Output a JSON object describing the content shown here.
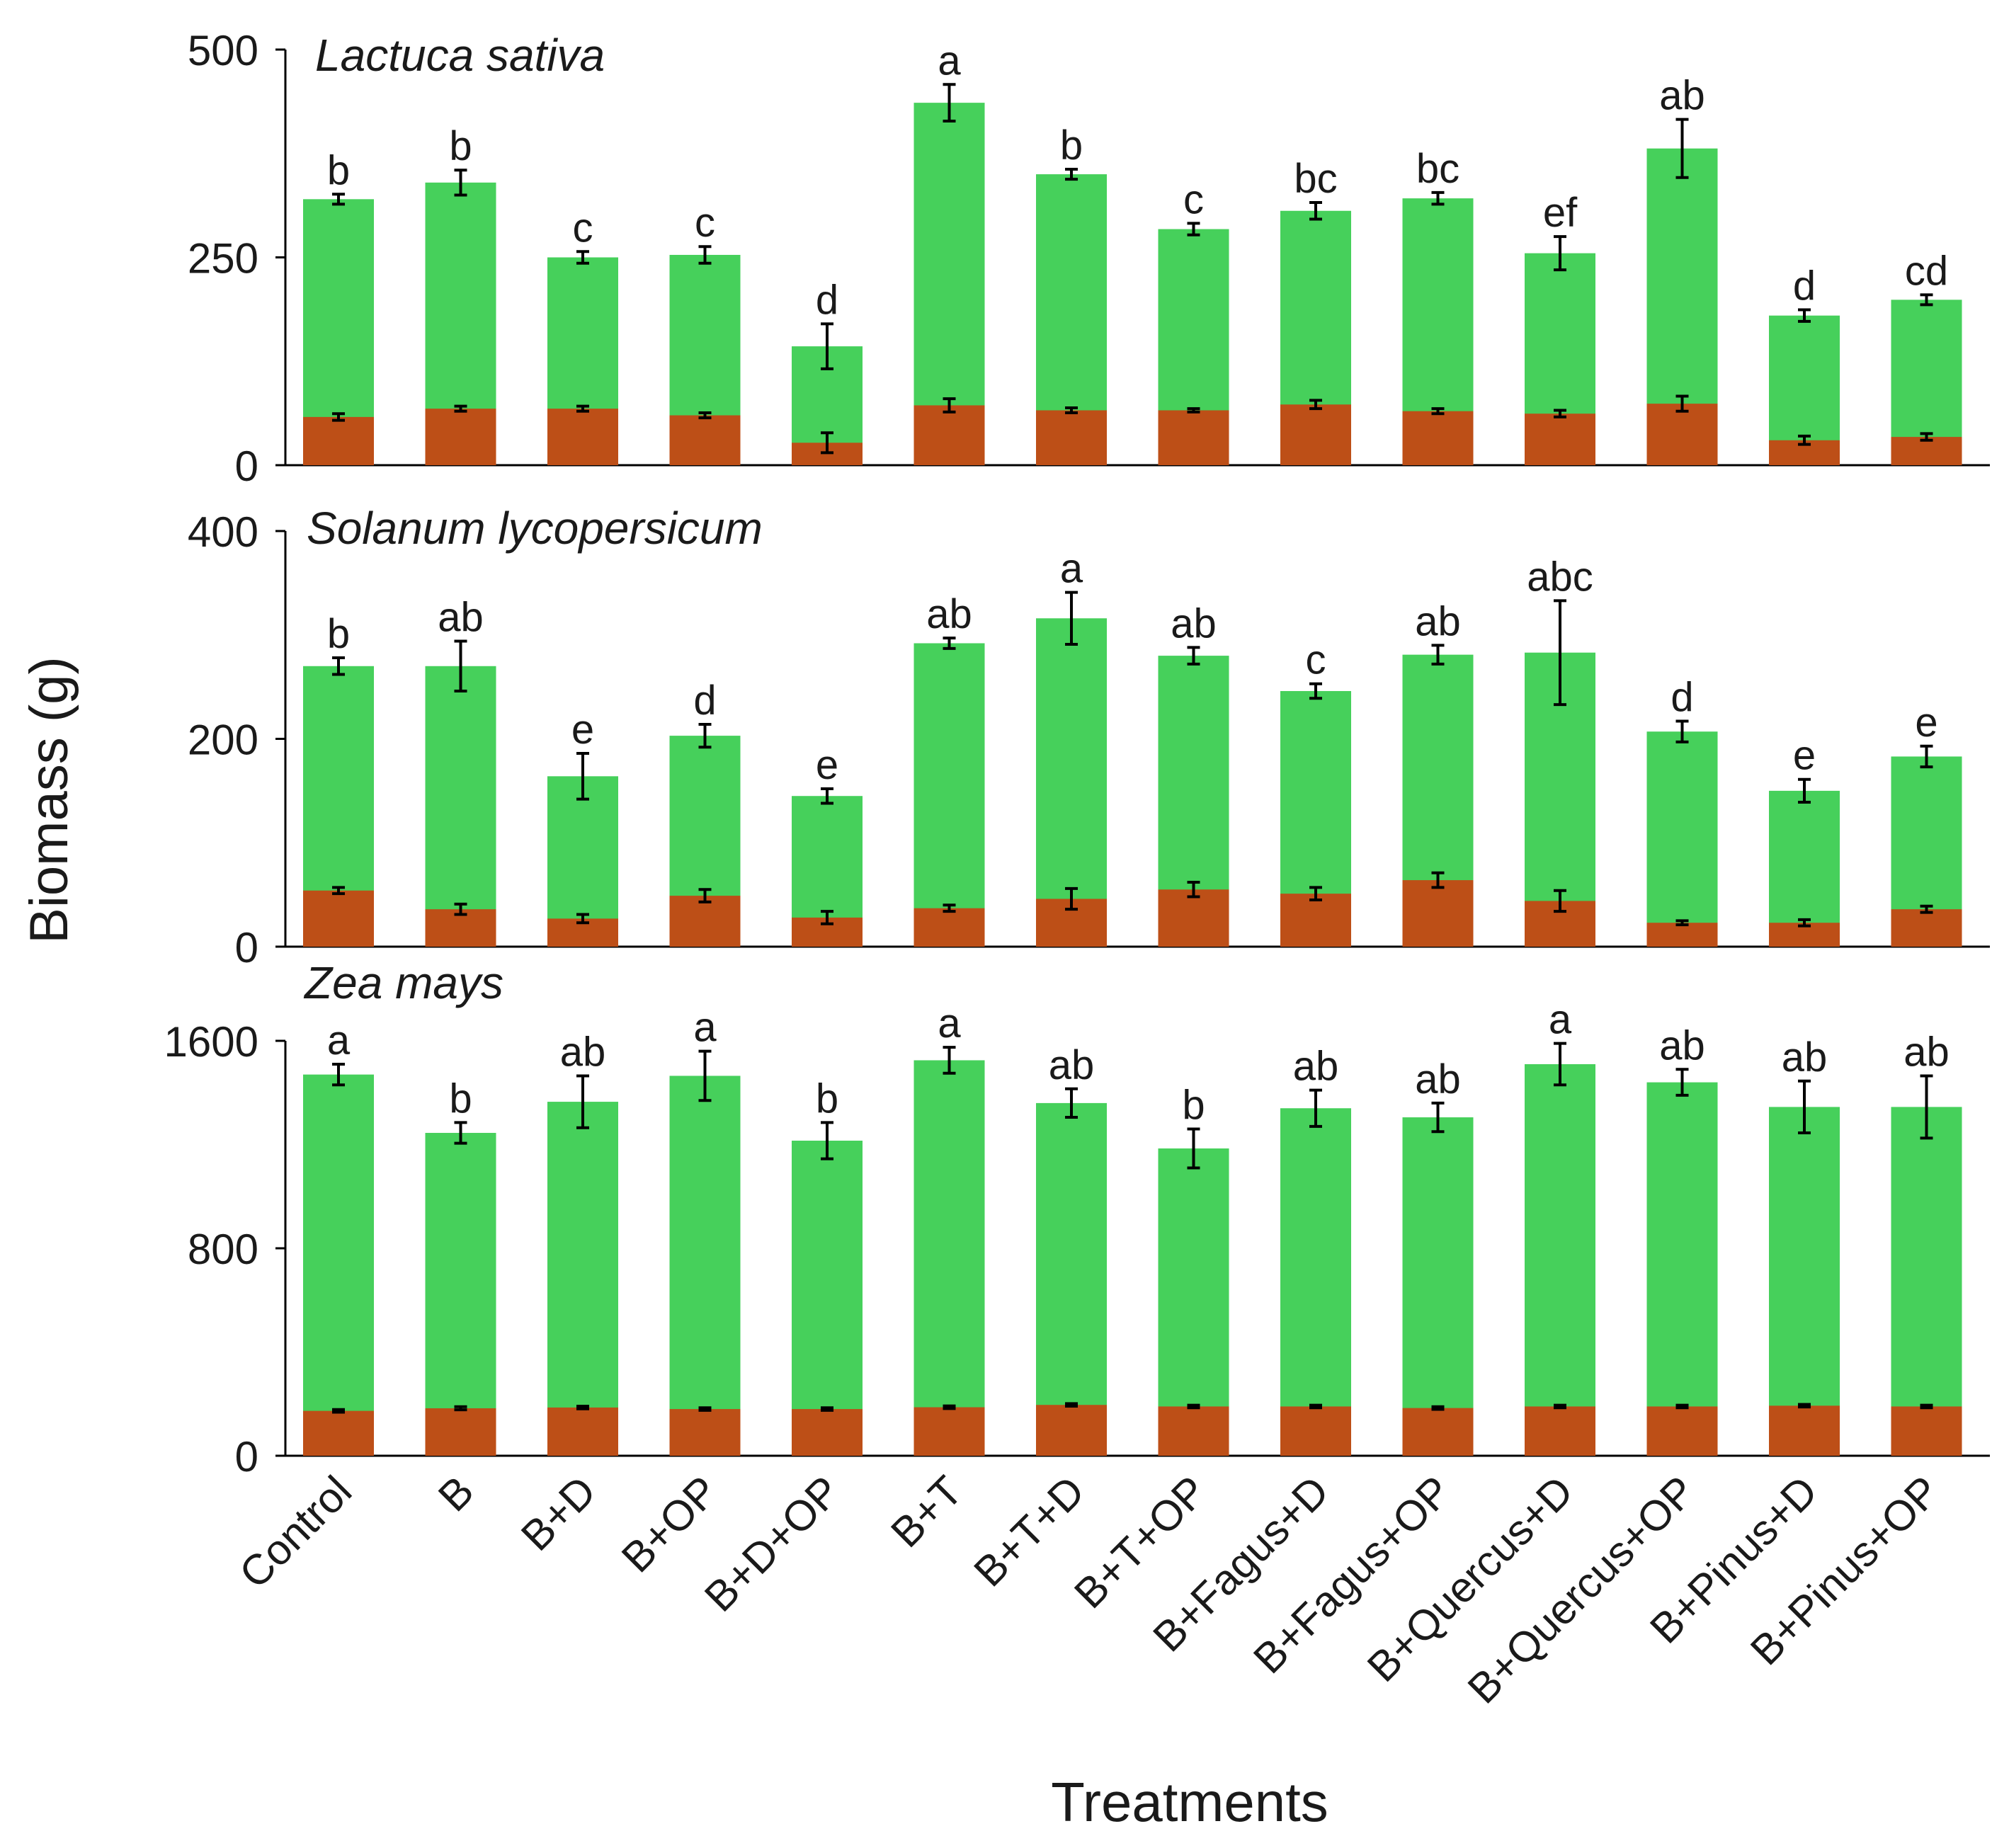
{
  "chart_data": {
    "type": "bar",
    "stacked": true,
    "ylabel": "Biomass (g)",
    "xlabel": "Treatments",
    "categories": [
      "Control",
      "B",
      "B+D",
      "B+OP",
      "B+D+OP",
      "B+T",
      "B+T+D",
      "B+T+OP",
      "B+Fagus+D",
      "B+Fagus+OP",
      "B+Quercus+D",
      "B+Quercus+OP",
      "B+Pinus+D",
      "B+Pinus+OP"
    ],
    "colors": {
      "green": "#46d05b",
      "brown": "#bd4f17",
      "axis": "#000000"
    },
    "panels": [
      {
        "title": "Lactuca sativa",
        "ylim": [
          0,
          500
        ],
        "yticks": [
          "0",
          "250",
          "500"
        ],
        "yticks_values": [
          0,
          250,
          500
        ],
        "series": [
          {
            "name": "bottom",
            "color": "#bd4f17",
            "values": [
              58,
              68,
              68,
              60,
              27,
              72,
              66,
              66,
              73,
              65,
              62,
              74,
              30,
              34
            ],
            "errors": [
              4,
              3,
              3,
              3,
              12,
              8,
              3,
              2,
              5,
              3,
              4,
              9,
              5,
              4
            ]
          },
          {
            "name": "total",
            "color": "#46d05b",
            "values": [
              320,
              340,
              250,
              253,
              143,
              436,
              350,
              284,
              306,
              321,
              255,
              381,
              180,
              199
            ],
            "errors": [
              6,
              15,
              7,
              10,
              27,
              22,
              6,
              7,
              10,
              7,
              20,
              35,
              7,
              6
            ]
          }
        ],
        "letters": [
          "b",
          "b",
          "c",
          "c",
          "d",
          "a",
          "b",
          "c",
          "bc",
          "bc",
          "ef",
          "ab",
          "d",
          "cd"
        ]
      },
      {
        "title": "Solanum lycopersicum",
        "ylim": [
          0,
          400
        ],
        "yticks": [
          "0",
          "200",
          "400"
        ],
        "yticks_values": [
          0,
          200,
          400
        ],
        "series": [
          {
            "name": "bottom",
            "color": "#bd4f17",
            "values": [
              54,
              36,
              27,
              49,
              28,
              37,
              46,
              55,
              51,
              64,
              44,
              23,
              23,
              36
            ],
            "errors": [
              3,
              5,
              4,
              6,
              6,
              3,
              10,
              7,
              6,
              7,
              10,
              2,
              3,
              3
            ]
          },
          {
            "name": "total",
            "color": "#46d05b",
            "values": [
              270,
              270,
              164,
              203,
              145,
              292,
              316,
              280,
              246,
              281,
              283,
              207,
              150,
              183
            ],
            "errors": [
              8,
              24,
              22,
              11,
              7,
              5,
              25,
              8,
              7,
              9,
              50,
              10,
              11,
              10
            ]
          }
        ],
        "letters": [
          "b",
          "ab",
          "e",
          "d",
          "e",
          "ab",
          "a",
          "ab",
          "c",
          "ab",
          "abc",
          "d",
          "e",
          "e"
        ]
      },
      {
        "title": "Zea mays",
        "ylim": [
          0,
          1600
        ],
        "yticks": [
          "0",
          "800",
          "1600"
        ],
        "yticks_values": [
          0,
          800,
          1600
        ],
        "series": [
          {
            "name": "bottom",
            "color": "#bd4f17",
            "values": [
              173,
              183,
              186,
              180,
              180,
              187,
              196,
              190,
              190,
              184,
              190,
              190,
              193,
              190
            ],
            "errors": [
              5,
              6,
              5,
              5,
              5,
              5,
              5,
              5,
              5,
              5,
              5,
              5,
              5,
              5
            ]
          },
          {
            "name": "total",
            "color": "#46d05b",
            "values": [
              1470,
              1245,
              1365,
              1465,
              1215,
              1525,
              1360,
              1185,
              1340,
              1305,
              1510,
              1440,
              1345,
              1345
            ],
            "errors": [
              40,
              40,
              100,
              95,
              70,
              50,
              55,
              75,
              70,
              55,
              80,
              50,
              100,
              120
            ]
          }
        ],
        "letters": [
          "a",
          "b",
          "ab",
          "a",
          "b",
          "a",
          "ab",
          "b",
          "ab",
          "ab",
          "a",
          "ab",
          "ab",
          "ab"
        ]
      }
    ]
  }
}
